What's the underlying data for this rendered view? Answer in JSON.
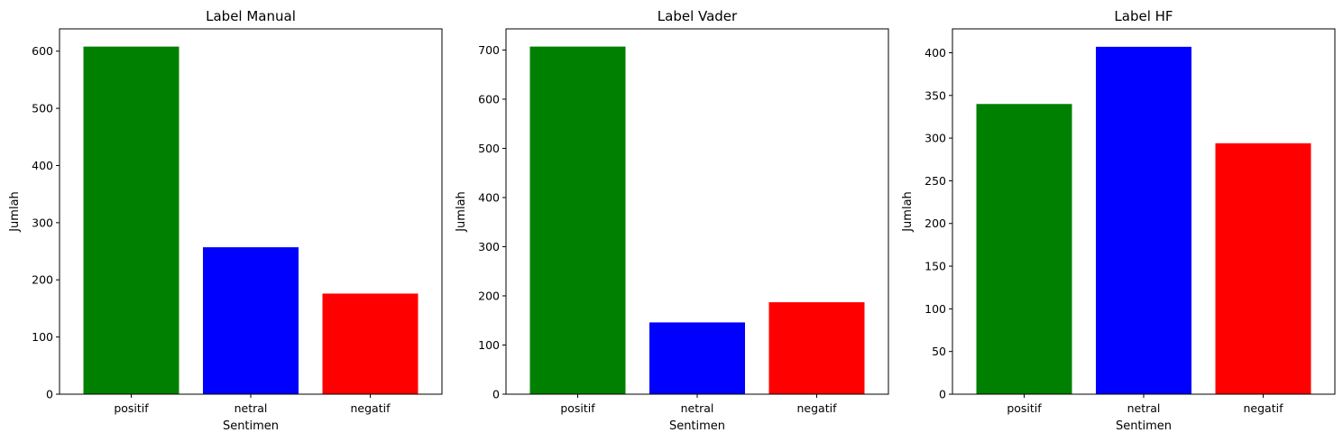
{
  "chart_data": [
    {
      "type": "bar",
      "title": "Label Manual",
      "xlabel": "Sentimen",
      "ylabel": "Jumlah",
      "categories": [
        "positif",
        "netral",
        "negatif"
      ],
      "values": [
        608,
        257,
        176
      ],
      "colors": [
        "#008000",
        "#0000ff",
        "#ff0000"
      ],
      "ylim": [
        0,
        639
      ],
      "yticks": [
        0,
        100,
        200,
        300,
        400,
        500,
        600
      ],
      "grid": false
    },
    {
      "type": "bar",
      "title": "Label Vader",
      "xlabel": "Sentimen",
      "ylabel": "Jumlah",
      "categories": [
        "positif",
        "netral",
        "negatif"
      ],
      "values": [
        707,
        146,
        187
      ],
      "colors": [
        "#008000",
        "#0000ff",
        "#ff0000"
      ],
      "ylim": [
        0,
        743
      ],
      "yticks": [
        0,
        100,
        200,
        300,
        400,
        500,
        600,
        700
      ],
      "grid": false
    },
    {
      "type": "bar",
      "title": "Label HF",
      "xlabel": "Sentimen",
      "ylabel": "Jumlah",
      "categories": [
        "positif",
        "netral",
        "negatif"
      ],
      "values": [
        340,
        407,
        294
      ],
      "colors": [
        "#008000",
        "#0000ff",
        "#ff0000"
      ],
      "ylim": [
        0,
        428
      ],
      "yticks": [
        0,
        50,
        100,
        150,
        200,
        250,
        300,
        350,
        400
      ],
      "grid": false
    }
  ]
}
